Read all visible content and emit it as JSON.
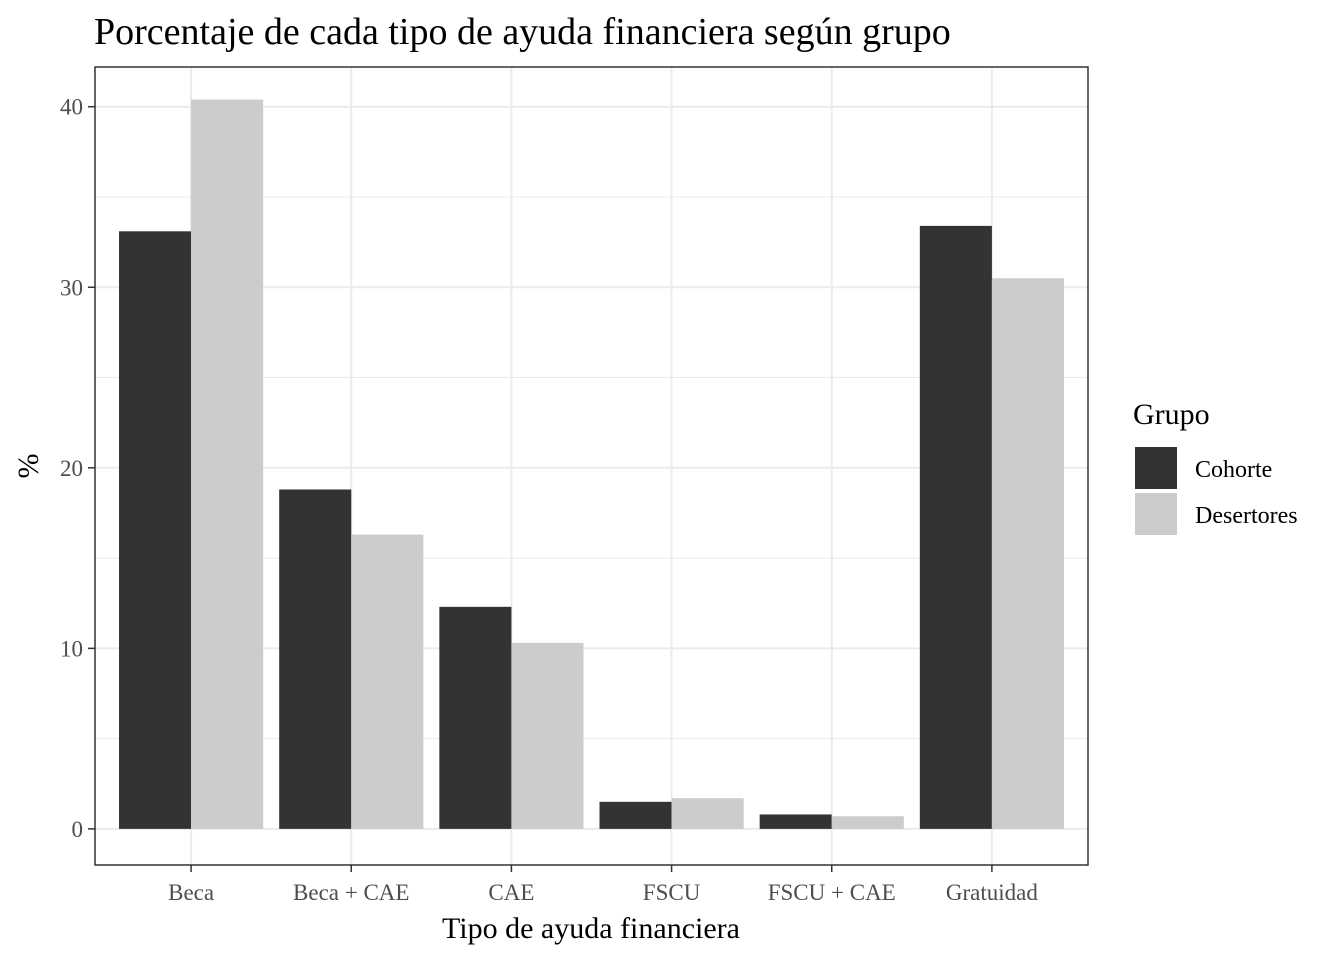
{
  "chart_data": {
    "type": "bar",
    "title": "Porcentaje de cada tipo de ayuda financiera según grupo",
    "xlabel": "Tipo de ayuda financiera",
    "ylabel": "%",
    "categories": [
      "Beca",
      "Beca + CAE",
      "CAE",
      "FSCU",
      "FSCU + CAE",
      "Gratuidad"
    ],
    "series": [
      {
        "name": "Cohorte",
        "color": "#333333",
        "values": [
          33.1,
          18.8,
          12.3,
          1.5,
          0.8,
          33.4
        ]
      },
      {
        "name": "Desertores",
        "color": "#cccccc",
        "values": [
          40.4,
          16.3,
          10.3,
          1.7,
          0.7,
          30.5
        ]
      }
    ],
    "ylim": [
      -2,
      42.2
    ],
    "yticks": [
      0,
      10,
      20,
      30,
      40
    ],
    "grid": true,
    "legend": {
      "title": "Grupo",
      "position": "right"
    }
  }
}
